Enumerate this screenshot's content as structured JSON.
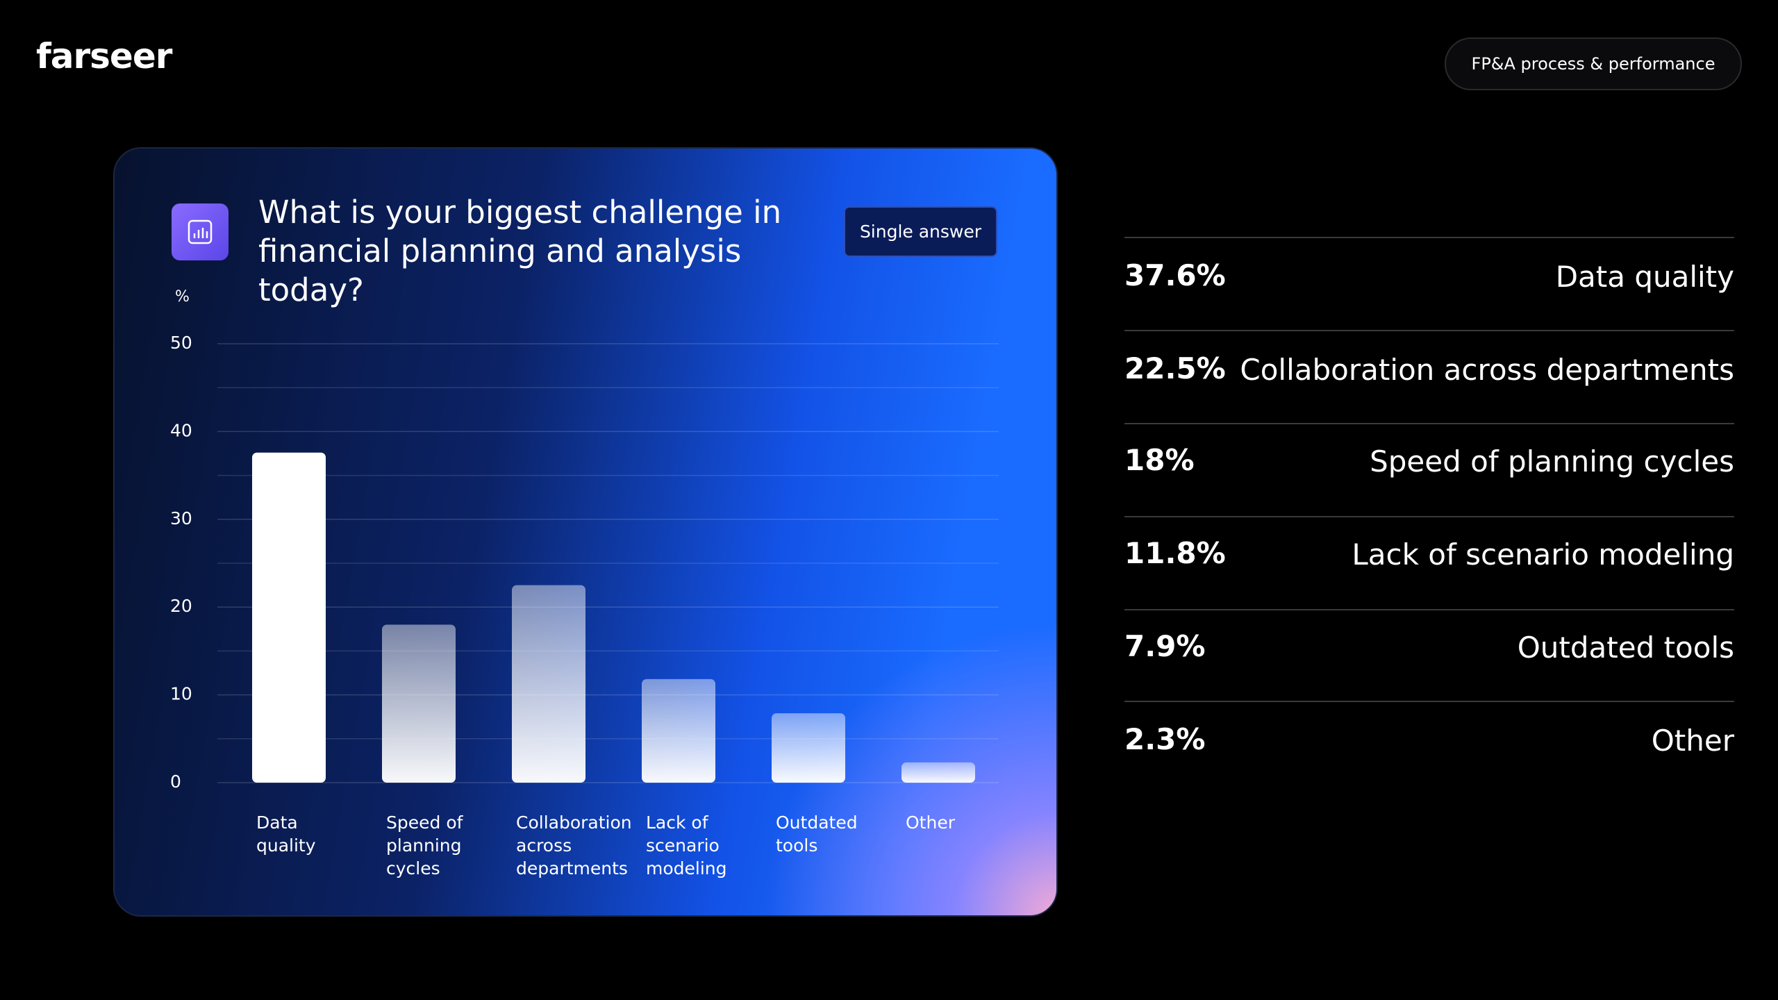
{
  "header": {
    "logo": "farseer",
    "tag": "FP&A process & performance"
  },
  "chart_data": {
    "type": "bar",
    "title": "What is your biggest challenge in financial planning and analysis today?",
    "badge": "Single answer",
    "y_label": "%",
    "categories": [
      "Data quality",
      "Speed of planning cycles",
      "Collaboration across departments",
      "Lack of scenario modeling",
      "Outdated tools",
      "Other"
    ],
    "values": [
      37.6,
      18,
      22.5,
      11.8,
      7.9,
      2.3
    ],
    "color": "#ffffff",
    "ylim": [
      0,
      50
    ],
    "yticks": [
      0,
      10,
      20,
      30,
      40,
      50
    ],
    "minor_yticks": [
      5,
      15,
      25,
      35,
      45
    ],
    "grid": true
  },
  "results": [
    {
      "value": "37.6%",
      "label": "Data quality"
    },
    {
      "value": "22.5%",
      "label": "Collaboration across departments"
    },
    {
      "value": "18%",
      "label": "Speed of planning cycles"
    },
    {
      "value": "11.8%",
      "label": "Lack of scenario modeling"
    },
    {
      "value": "7.9%",
      "label": "Outdated tools"
    },
    {
      "value": "2.3%",
      "label": "Other"
    }
  ]
}
